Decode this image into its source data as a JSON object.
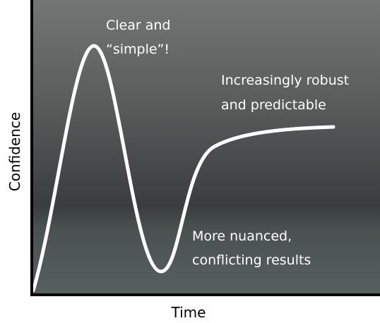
{
  "axes": {
    "x_label": "Time",
    "y_label": "Confidence"
  },
  "annotations": [
    {
      "lines": [
        "Clear and",
        "“simple”!"
      ]
    },
    {
      "lines": [
        "Increasingly robust",
        "and predictable"
      ]
    },
    {
      "lines": [
        "More nuanced,",
        "conflicting results"
      ]
    }
  ]
}
